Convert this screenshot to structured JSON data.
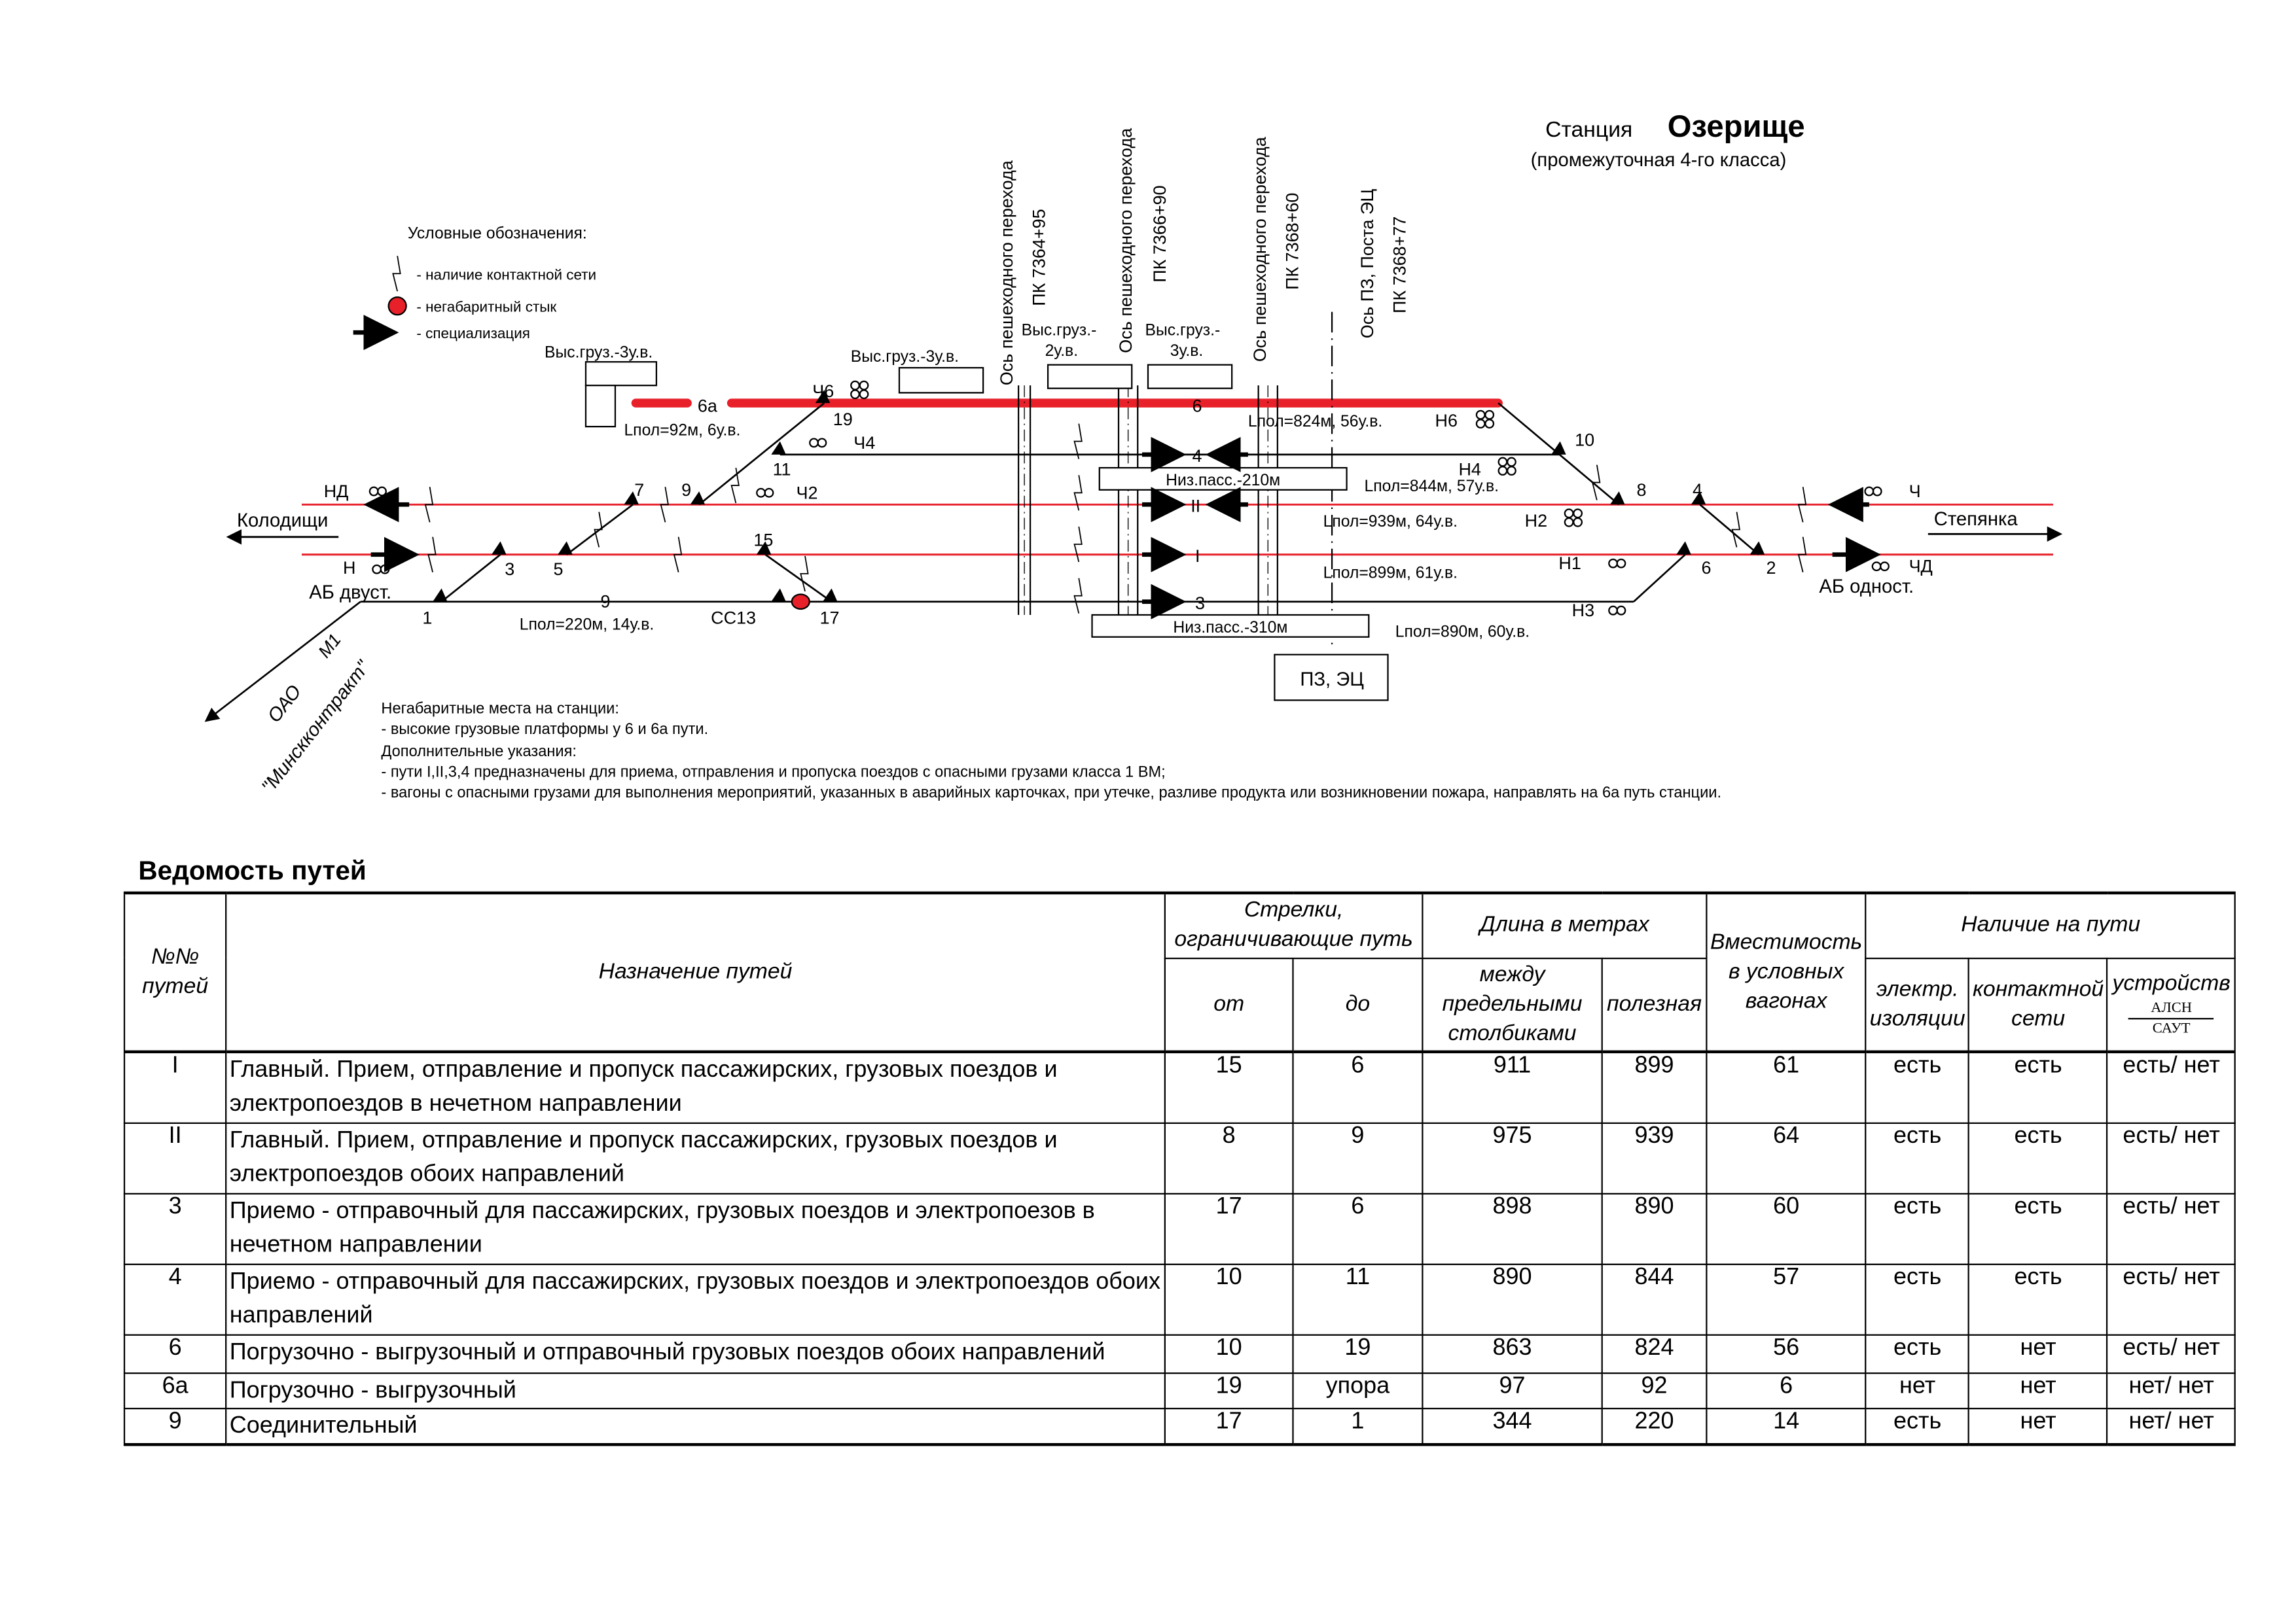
{
  "title": {
    "prefix": "Станция",
    "name": "Озерище",
    "subtitle": "(промежуточная 4-го класса)"
  },
  "legend": {
    "title": "Условные обозначения:",
    "items": [
      {
        "icon": "contact-network-icon",
        "label": "- наличие  контактной сети"
      },
      {
        "icon": "oversize-joint-icon",
        "label": "- негабаритный стык"
      },
      {
        "icon": "specialization-arrow-icon",
        "label": "- специализация"
      }
    ]
  },
  "diagram": {
    "tracks": {
      "t6a": "6а",
      "t6": "6",
      "t4": "4",
      "tII": "II",
      "tI": "I",
      "t3": "3",
      "t9": "9"
    },
    "switches": {
      "s19": "19",
      "s11": "11",
      "s7": "7",
      "s9": "9",
      "s3": "3",
      "s5": "5",
      "s1": "1",
      "s15": "15",
      "s17": "17",
      "s10": "10",
      "s8": "8",
      "s4": "4",
      "s6": "6",
      "s2": "2"
    },
    "signals": {
      "ND": "НД",
      "N": "Н",
      "Ch4": "Ч4",
      "Ch2": "Ч2",
      "Ch6": "Ч6",
      "N6": "Н6",
      "N4": "Н4",
      "N2": "Н2",
      "N1": "Н1",
      "N3": "Н3",
      "Ch": "Ч",
      "ChD": "ЧД",
      "SS13": "СС13",
      "M1": "М1"
    },
    "lengths": {
      "l6a": "Lпол=92м, 6у.в.",
      "l6": "Lпол=824м, 56у.в.",
      "l4": "Lпол=844м, 57у.в.",
      "lII": "Lпол=939м, 64у.в.",
      "lI": "Lпол=899м, 61у.в.",
      "l3": "Lпол=890м, 60у.в.",
      "l9": "Lпол=220м, 14у.в."
    },
    "platforms": {
      "hp1": "Выс.груз.-3у.в.",
      "hp2": "Выс.груз.-3у.в.",
      "hp3a": "Выс.груз.-",
      "hp3b": "2у.в.",
      "hp4a": "Выс.груз.-",
      "hp4b": "3у.в.",
      "low210": "Низ.пасс.-210м",
      "low310": "Низ.пасс.-310м",
      "post": "ПЗ, ЭЦ"
    },
    "crossings": {
      "c1": "Ось пешеходного перехода",
      "pk1": "ПК 7364+95",
      "c2": "Ось пешеходного перехода",
      "pk2": "ПК 7366+90",
      "c3": "Ось пешеходного перехода",
      "pk3": "ПК 7368+60",
      "c4": "Ось ПЗ, Поста ЭЦ",
      "pk4": "ПК 7368+77"
    },
    "directions": {
      "left": "Колодищи",
      "right": "Степянка",
      "ab_left": "АБ двуст.",
      "ab_right": "АБ одност.",
      "branch1": "ОАО",
      "branch2": "\"Минскконтракт\""
    },
    "colors": {
      "electrified": "#e8202a",
      "track": "#000000"
    }
  },
  "notes": [
    "Негабаритные места на станции:",
    "- высокие грузовые платформы у 6 и 6а пути.",
    "Дополнительные указания:",
    "- пути I,II,3,4 предназначены для приема, отправления и пропуска поездов с опасными грузами класса 1 ВМ;",
    "- вагоны с опасными грузами для выполнения мероприятий, указанных в аварийных карточках, при утечке, разливе продукта или возникновении пожара, направлять на 6а путь станции."
  ],
  "table": {
    "title": "Ведомость путей",
    "headers": {
      "num": "№№ путей",
      "purpose": "Назначение путей",
      "switches": "Стрелки, ограничивающие путь",
      "from": "от",
      "to": "до",
      "length": "Длина в метрах",
      "between": "между предельными столбиками",
      "useful": "полезная",
      "capacity": "Вместимость в условных вагонах",
      "presence": "Наличие на пути",
      "insulation": "электр. изоляции",
      "catenary": "контактной сети",
      "devices": "устройств",
      "alsn": "АЛСН",
      "saut": "САУТ"
    },
    "rows": [
      [
        "I",
        "Главный. Прием, отправление и пропуск пассажирских, грузовых поездов и электропоездов в нечетном направлении",
        "15",
        "6",
        "911",
        "899",
        "61",
        "есть",
        "есть",
        "есть/ нет"
      ],
      [
        "II",
        "Главный. Прием, отправление и пропуск пассажирских, грузовых поездов и электропоездов обоих направлений",
        "8",
        "9",
        "975",
        "939",
        "64",
        "есть",
        "есть",
        "есть/ нет"
      ],
      [
        "3",
        "Приемо - отправочный для пассажирских, грузовых поездов и электропоезов в нечетном направлении",
        "17",
        "6",
        "898",
        "890",
        "60",
        "есть",
        "есть",
        "есть/ нет"
      ],
      [
        "4",
        "Приемо - отправочный для пассажирских, грузовых поездов и электропоездов обоих направлений",
        "10",
        "11",
        "890",
        "844",
        "57",
        "есть",
        "есть",
        "есть/ нет"
      ],
      [
        "6",
        "Погрузочно - выгрузочный и отправочный грузовых поездов обоих направлений",
        "10",
        "19",
        "863",
        "824",
        "56",
        "есть",
        "нет",
        "есть/ нет"
      ],
      [
        "6а",
        "Погрузочно - выгрузочный",
        "19",
        "упора",
        "97",
        "92",
        "6",
        "нет",
        "нет",
        "нет/ нет"
      ],
      [
        "9",
        "Соединительный",
        "17",
        "1",
        "344",
        "220",
        "14",
        "есть",
        "нет",
        "нет/ нет"
      ]
    ]
  }
}
